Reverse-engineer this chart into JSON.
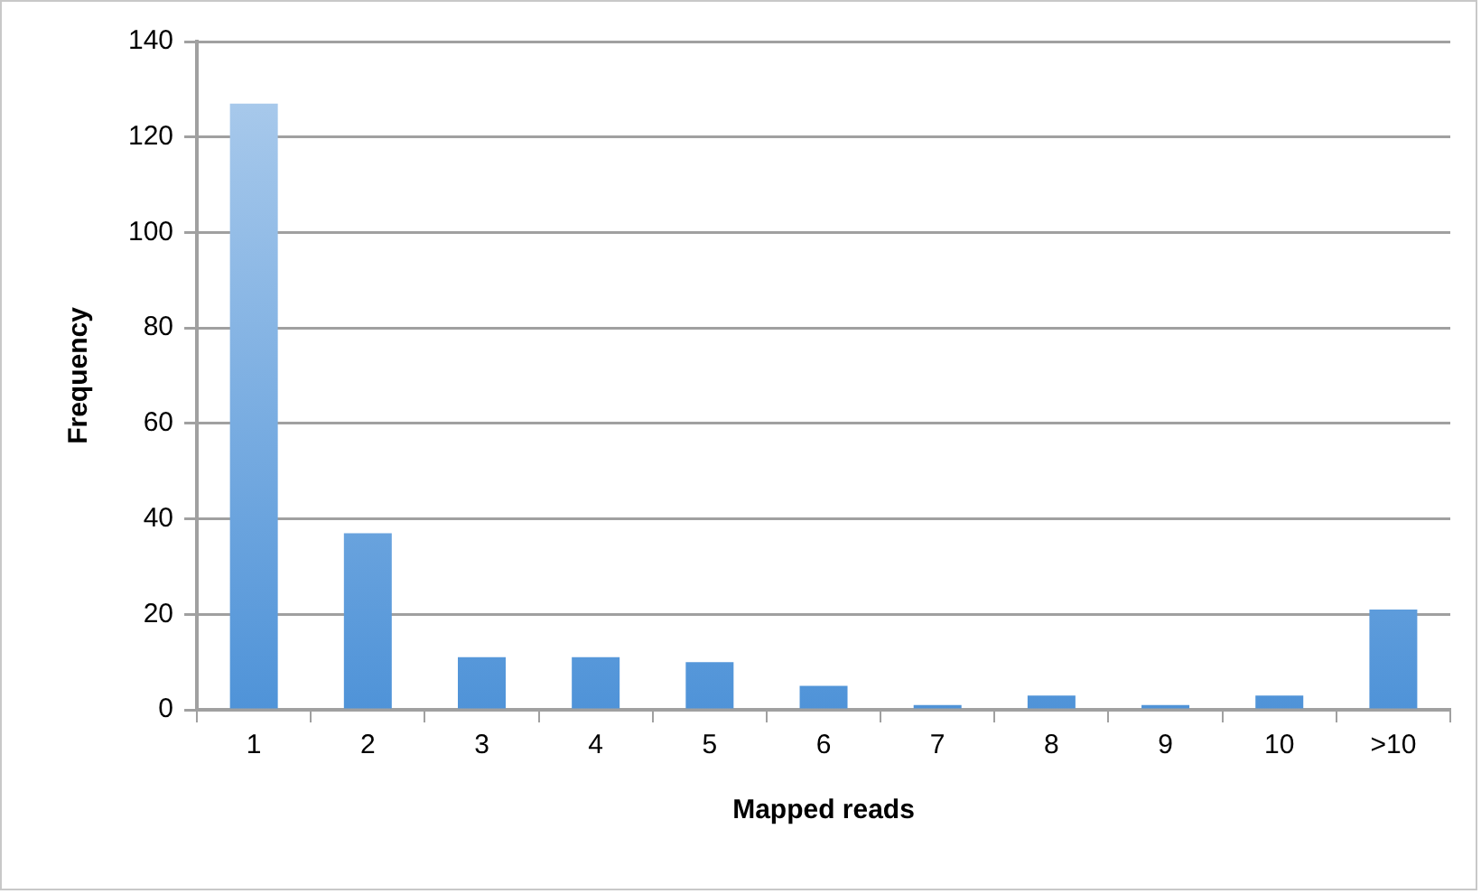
{
  "chart_data": {
    "type": "bar",
    "xlabel": "Mapped reads",
    "ylabel": "Frequency",
    "categories": [
      "1",
      "2",
      "3",
      "4",
      "5",
      "6",
      "7",
      "8",
      "9",
      "10",
      ">10"
    ],
    "values": [
      127,
      37,
      11,
      11,
      10,
      5,
      1,
      3,
      1,
      3,
      21
    ],
    "color": "#4f93d8",
    "ylim": [
      0,
      140
    ],
    "yticks": [
      0,
      20,
      40,
      60,
      80,
      100,
      120,
      140
    ],
    "grid": "y",
    "legend": false
  }
}
